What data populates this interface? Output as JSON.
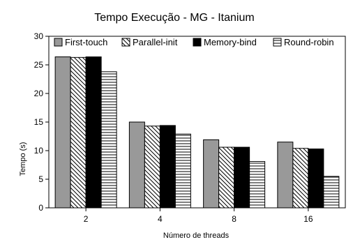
{
  "chart_data": {
    "type": "bar",
    "title": "Tempo Execução -  MG - Itanium",
    "xlabel": "Número de threads",
    "ylabel": "Tempo (s)",
    "categories": [
      "2",
      "4",
      "8",
      "16"
    ],
    "ylim": [
      0,
      30
    ],
    "yticks": [
      0,
      5,
      10,
      15,
      20,
      25,
      30
    ],
    "grid": false,
    "legend_position": "top",
    "series": [
      {
        "name": "First-touch",
        "values": [
          26.4,
          15.0,
          11.9,
          11.5
        ],
        "fill": "solid-gray",
        "color": "#999999"
      },
      {
        "name": "Parallel-init",
        "values": [
          26.3,
          14.3,
          10.6,
          10.4
        ],
        "fill": "diagonal-hatch",
        "color": "#ffffff"
      },
      {
        "name": "Memory-bind",
        "values": [
          26.4,
          14.4,
          10.6,
          10.3
        ],
        "fill": "solid-black",
        "color": "#000000"
      },
      {
        "name": "Round-robin",
        "values": [
          23.8,
          12.9,
          8.1,
          5.5
        ],
        "fill": "horizontal-hatch",
        "color": "#ffffff"
      }
    ]
  }
}
